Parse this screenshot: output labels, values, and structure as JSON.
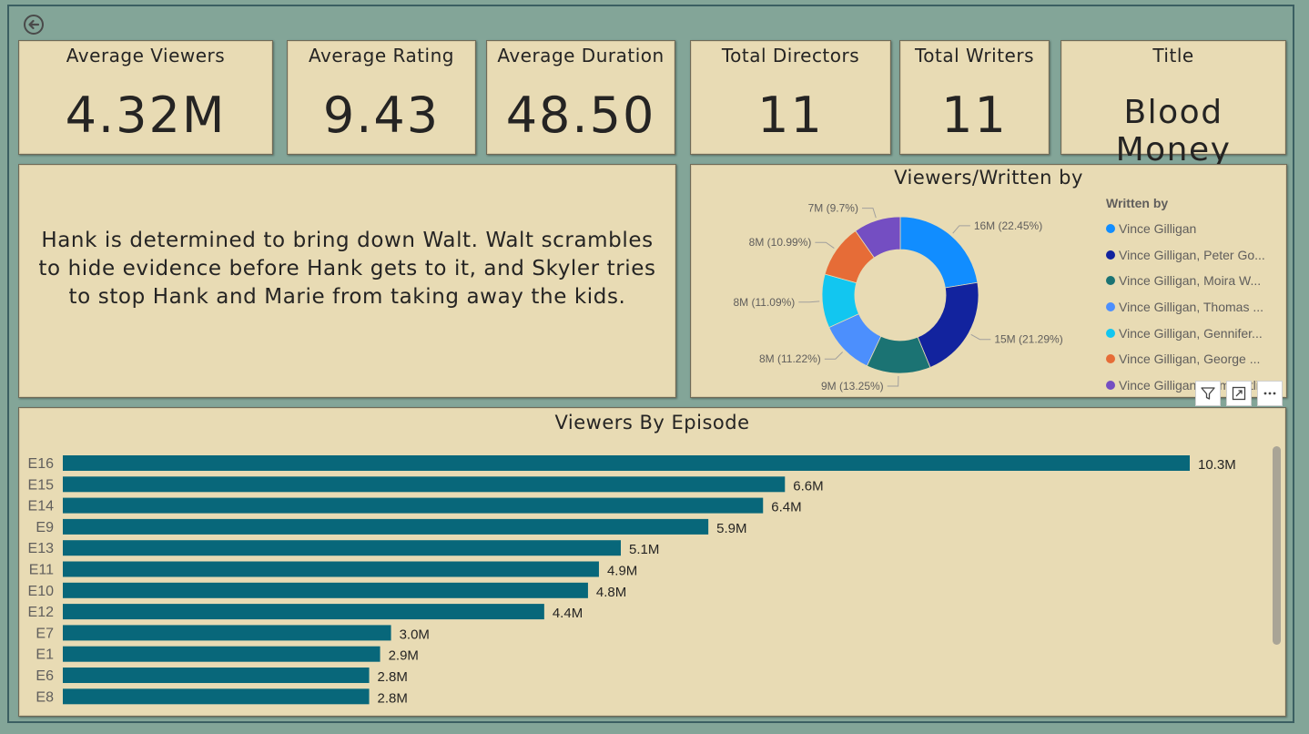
{
  "kpis": {
    "avg_viewers": {
      "label": "Average Viewers",
      "value": "4.32M"
    },
    "avg_rating": {
      "label": "Average Rating",
      "value": "9.43"
    },
    "avg_duration": {
      "label": "Average Duration",
      "value": "48.50"
    },
    "total_directors": {
      "label": "Total Directors",
      "value": "11"
    },
    "total_writers": {
      "label": "Total Writers",
      "value": "11"
    },
    "title": {
      "label": "Title",
      "value": "Blood Money"
    }
  },
  "description": "Hank is determined to bring down Walt. Walt scrambles to hide evidence before Hank gets to it, and Skyler tries to stop Hank and Marie from taking away the kids.",
  "visual_tools": {
    "filter": "filter-icon",
    "focus": "focus-mode-icon",
    "more": "more-options-icon"
  },
  "colors": {
    "background": "#83a598",
    "card": "#e8dbb4",
    "bar": "#08677a"
  },
  "chart_data": [
    {
      "type": "pie",
      "title": "Viewers/Written by",
      "legend_title": "Written by",
      "legend_position": "right",
      "donut": true,
      "slices": [
        {
          "name": "Vince Gilligan",
          "label": "16M (22.45%)",
          "percent": 22.45,
          "color": "#118dff"
        },
        {
          "name": "Vince Gilligan, Peter Go...",
          "label": "15M (21.29%)",
          "percent": 21.29,
          "color": "#12239e"
        },
        {
          "name": "Vince Gilligan, Moira W...",
          "label": "9M (13.25%)",
          "percent": 13.25,
          "color": "#1b7373"
        },
        {
          "name": "Vince Gilligan, Thomas ...",
          "label": "8M (11.22%)",
          "percent": 11.22,
          "color": "#4c8ffd"
        },
        {
          "name": "Vince Gilligan, Gennifer...",
          "label": "8M (11.09%)",
          "percent": 11.09,
          "color": "#12c6f0"
        },
        {
          "name": "Vince Gilligan, George ...",
          "label": "8M (10.99%)",
          "percent": 10.99,
          "color": "#e66c37"
        },
        {
          "name": "Vince Gilligan, Sam Catlin",
          "label": "7M (9.7%)",
          "percent": 9.7,
          "color": "#744ec2"
        }
      ]
    },
    {
      "type": "bar",
      "orientation": "horizontal",
      "title": "Viewers By Episode",
      "categories": [
        "E16",
        "E15",
        "E14",
        "E9",
        "E13",
        "E11",
        "E10",
        "E12",
        "E7",
        "E1",
        "E6",
        "E8"
      ],
      "values": [
        10.3,
        6.6,
        6.4,
        5.9,
        5.1,
        4.9,
        4.8,
        4.4,
        3.0,
        2.9,
        2.8,
        2.8
      ],
      "value_labels": [
        "10.3M",
        "6.6M",
        "6.4M",
        "5.9M",
        "5.1M",
        "4.9M",
        "4.8M",
        "4.4M",
        "3.0M",
        "2.9M",
        "2.8M",
        "2.8M"
      ],
      "xlim": [
        0,
        10.3
      ],
      "grid": false
    }
  ]
}
